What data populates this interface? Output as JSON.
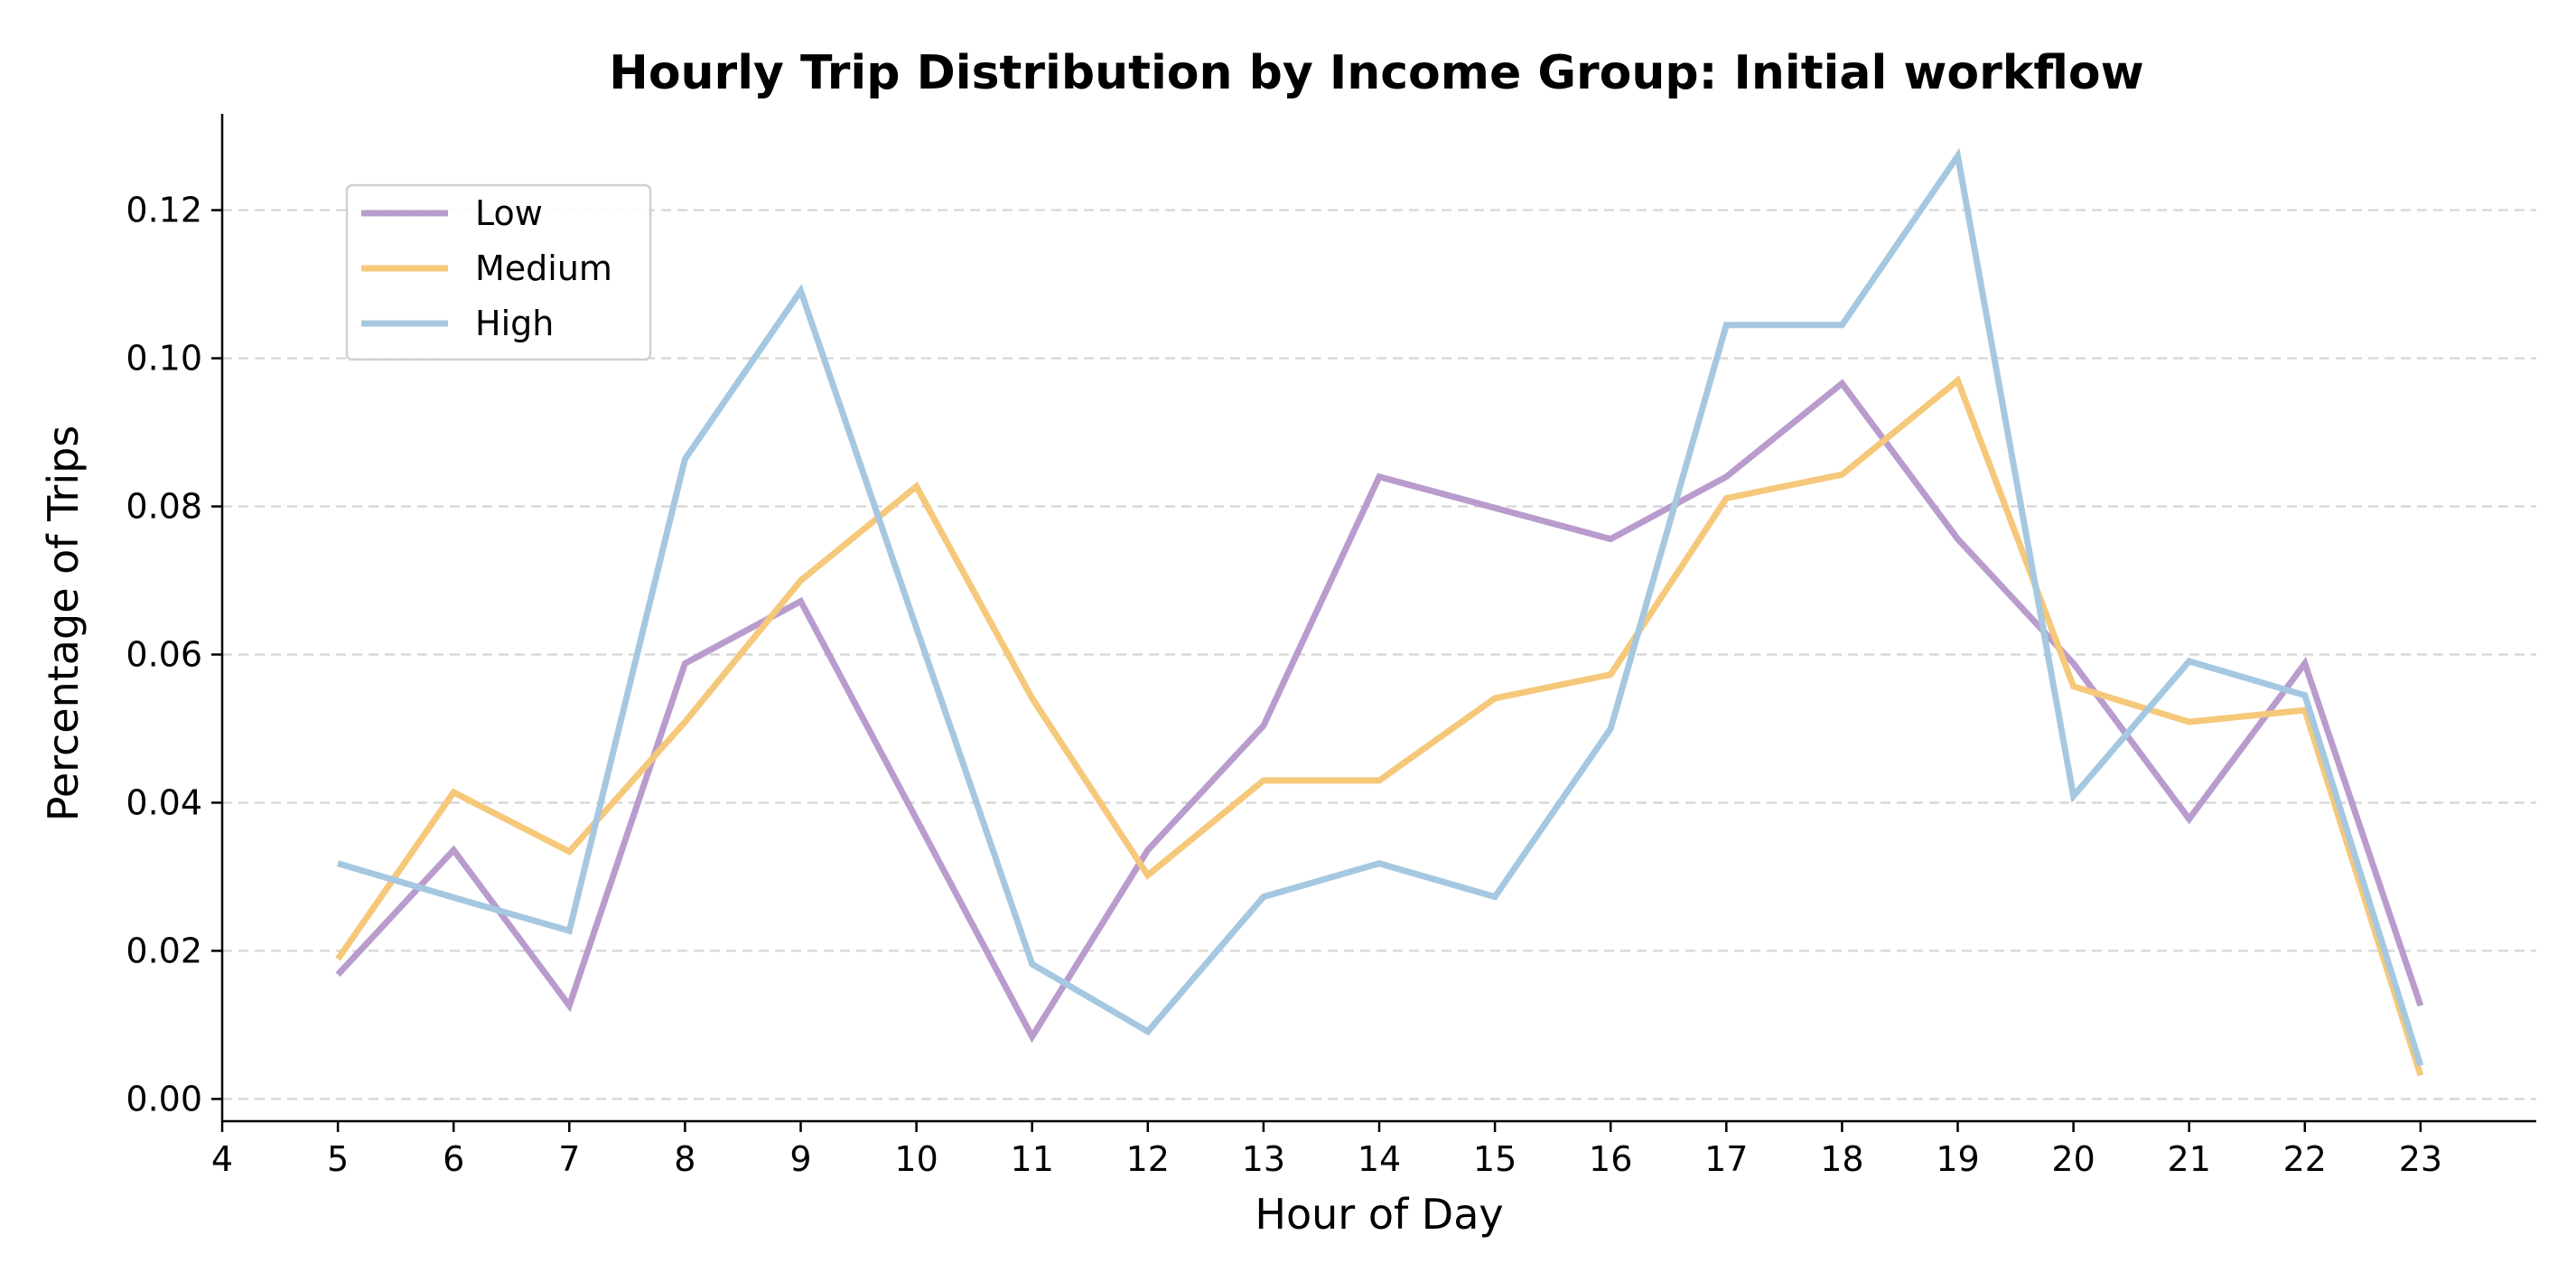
{
  "chart_data": {
    "type": "line",
    "title": "Hourly Trip Distribution by Income Group: Initial workflow",
    "xlabel": "Hour of Day",
    "ylabel": "Percentage of Trips",
    "xlim": [
      4,
      24
    ],
    "ylim": [
      -0.003,
      0.133
    ],
    "x_ticks": [
      4,
      5,
      6,
      7,
      8,
      9,
      10,
      11,
      12,
      13,
      14,
      15,
      16,
      17,
      18,
      19,
      20,
      21,
      22,
      23
    ],
    "y_ticks": [
      0.0,
      0.02,
      0.04,
      0.06,
      0.08,
      0.1,
      0.12
    ],
    "y_tick_labels": [
      "0.00",
      "0.02",
      "0.04",
      "0.06",
      "0.08",
      "0.10",
      "0.12"
    ],
    "grid": "horizontal dashed",
    "legend_position": "upper-left",
    "x": [
      5,
      6,
      7,
      8,
      9,
      10,
      11,
      12,
      13,
      14,
      15,
      16,
      17,
      18,
      19,
      20,
      21,
      22,
      23
    ],
    "series": [
      {
        "name": "Low",
        "color": "#b99ccd",
        "values": [
          0.0168,
          0.0336,
          0.0126,
          0.0588,
          0.0672,
          0.0378,
          0.0084,
          0.0336,
          0.0504,
          0.084,
          0.0798,
          0.0756,
          0.084,
          0.0966,
          0.0756,
          0.0588,
          0.0378,
          0.0588,
          0.0126
        ]
      },
      {
        "name": "Medium",
        "color": "#f5c87a",
        "values": [
          0.0189,
          0.0414,
          0.0334,
          0.0509,
          0.07,
          0.0827,
          0.0541,
          0.0302,
          0.043,
          0.043,
          0.0541,
          0.0573,
          0.0811,
          0.0843,
          0.097,
          0.0557,
          0.0509,
          0.0525,
          0.0032
        ]
      },
      {
        "name": "High",
        "color": "#a5c8e0",
        "values": [
          0.0318,
          0.0272,
          0.0227,
          0.0864,
          0.1091,
          0.0636,
          0.0182,
          0.0091,
          0.0273,
          0.0318,
          0.0273,
          0.05,
          0.1045,
          0.1045,
          0.1273,
          0.0409,
          0.0591,
          0.0545,
          0.0045
        ]
      }
    ]
  }
}
